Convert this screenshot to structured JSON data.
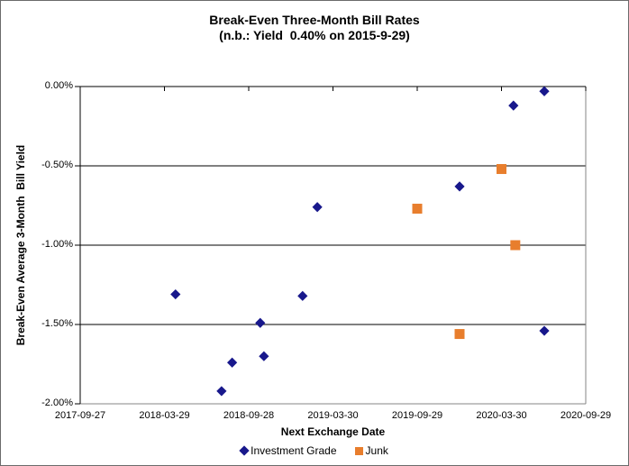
{
  "title": {
    "line1": "Break-Even Three-Month Bill Rates",
    "line2": "(n.b.: Yield  0.40% on 2015-9-29)"
  },
  "axes": {
    "x_title": "Next Exchange Date",
    "y_title": "Break-Even Average 3-Month  Bill Yield"
  },
  "colors": {
    "investment_grade": "#18188C",
    "junk": "#E87E2D",
    "axis_line": "#000000",
    "plot_border": "#848484",
    "gridline": "#000000"
  },
  "chart_data": {
    "type": "scatter",
    "title": "Break-Even Three-Month Bill Rates",
    "subtitle": "(n.b.: Yield 0.40% on 2015-9-29)",
    "xlabel": "Next Exchange Date",
    "ylabel": "Break-Even Average 3-Month Bill Yield",
    "x_axis": {
      "range": [
        "2017-09-27",
        "2020-09-29"
      ],
      "tick_labels": [
        "2017-09-27",
        "2018-03-29",
        "2018-09-28",
        "2019-03-30",
        "2019-09-29",
        "2020-03-30",
        "2020-09-29"
      ],
      "ticks_position": "top-inside"
    },
    "y_axis": {
      "range": [
        -2.0,
        0.0
      ],
      "tick_values": [
        0,
        -0.5,
        -1.0,
        -1.5,
        -2.0
      ],
      "tick_labels": [
        "0.00%",
        "-0.50%",
        "-1.00%",
        "-1.50%",
        "-2.00%"
      ],
      "gridlines": [
        -0.5,
        -1.0,
        -1.5
      ],
      "unit": "percent"
    },
    "legend": {
      "position": "bottom",
      "entries": [
        "Investment Grade",
        "Junk"
      ]
    },
    "series": [
      {
        "name": "Investment Grade",
        "marker": "diamond",
        "color": "#18188C",
        "points": [
          [
            "2018-04-22",
            -1.31
          ],
          [
            "2018-07-31",
            -1.92
          ],
          [
            "2018-08-23",
            -1.74
          ],
          [
            "2018-10-23",
            -1.49
          ],
          [
            "2018-10-31",
            -1.7
          ],
          [
            "2019-01-23",
            -1.32
          ],
          [
            "2019-02-24",
            -0.76
          ],
          [
            "2019-12-30",
            -0.63
          ],
          [
            "2020-04-25",
            -0.12
          ],
          [
            "2020-07-01",
            -0.03
          ],
          [
            "2020-07-01",
            -1.54
          ]
        ]
      },
      {
        "name": "Junk",
        "marker": "square",
        "color": "#E87E2D",
        "points": [
          [
            "2019-09-29",
            -0.77
          ],
          [
            "2019-12-30",
            -1.56
          ],
          [
            "2020-03-30",
            -0.52
          ],
          [
            "2020-04-29",
            -1.0
          ]
        ]
      }
    ]
  }
}
